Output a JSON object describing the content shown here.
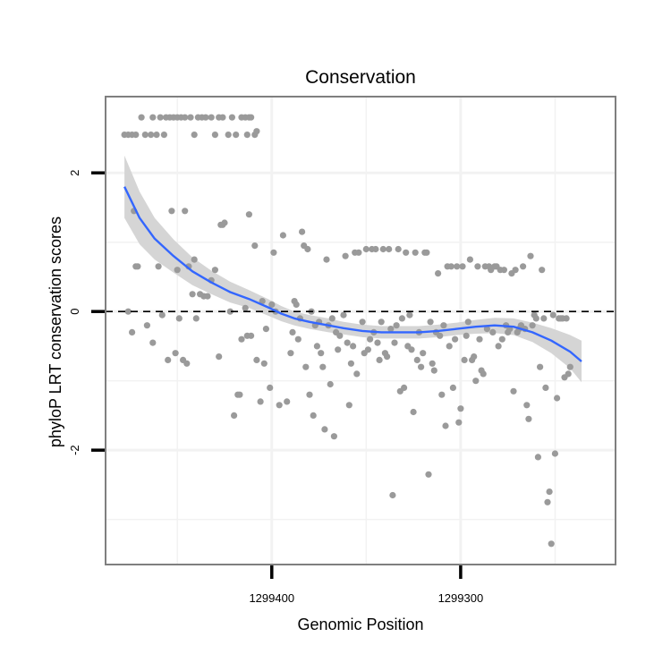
{
  "chart_data": {
    "type": "scatter",
    "title": "Conservation",
    "xlabel": "Genomic Position",
    "ylabel": "phyloP LRT conservation scores",
    "x_ticks": [
      {
        "value": 1299400,
        "label": "1299400"
      },
      {
        "value": 1299300,
        "label": "1299300"
      }
    ],
    "y_ticks": [
      {
        "value": 2,
        "label": "2"
      },
      {
        "value": 0,
        "label": "0"
      },
      {
        "value": -2,
        "label": "-2"
      }
    ],
    "xlim": [
      1299488,
      1299218
    ],
    "x_reversed": true,
    "ylim": [
      -3.65,
      3.1
    ],
    "grid": true,
    "reference_line": {
      "y": 0,
      "style": "dashed"
    },
    "colors": {
      "points": "#9a9a9a",
      "smooth": "#3366ff",
      "band": "#d3d3d3",
      "panel_border": "#7f7f7f",
      "grid": "#f2f2f2"
    },
    "series": [
      {
        "type": "scatter",
        "points": [
          [
            1299478,
            2.55
          ],
          [
            1299476,
            2.55
          ],
          [
            1299474,
            2.55
          ],
          [
            1299472,
            2.55
          ],
          [
            1299469,
            2.8
          ],
          [
            1299467,
            2.55
          ],
          [
            1299464,
            2.55
          ],
          [
            1299463,
            2.8
          ],
          [
            1299461,
            2.55
          ],
          [
            1299459,
            2.8
          ],
          [
            1299457,
            2.55
          ],
          [
            1299456,
            2.8
          ],
          [
            1299454,
            2.8
          ],
          [
            1299452,
            2.8
          ],
          [
            1299450,
            2.8
          ],
          [
            1299448,
            2.8
          ],
          [
            1299446,
            2.8
          ],
          [
            1299443,
            2.8
          ],
          [
            1299441,
            2.55
          ],
          [
            1299439,
            2.8
          ],
          [
            1299437,
            2.8
          ],
          [
            1299435,
            2.8
          ],
          [
            1299432,
            2.8
          ],
          [
            1299430,
            2.55
          ],
          [
            1299428,
            2.8
          ],
          [
            1299426,
            2.8
          ],
          [
            1299423,
            2.55
          ],
          [
            1299421,
            2.8
          ],
          [
            1299419,
            2.55
          ],
          [
            1299416,
            2.8
          ],
          [
            1299414,
            2.8
          ],
          [
            1299413,
            2.55
          ],
          [
            1299412,
            2.8
          ],
          [
            1299411,
            2.8
          ],
          [
            1299409,
            2.55
          ],
          [
            1299408,
            2.6
          ],
          [
            1299476,
            0.0
          ],
          [
            1299474,
            -0.3
          ],
          [
            1299473,
            1.45
          ],
          [
            1299472,
            0.65
          ],
          [
            1299471,
            0.65
          ],
          [
            1299466,
            -0.2
          ],
          [
            1299463,
            -0.45
          ],
          [
            1299460,
            0.65
          ],
          [
            1299458,
            -0.05
          ],
          [
            1299455,
            -0.7
          ],
          [
            1299453,
            1.45
          ],
          [
            1299451,
            -0.6
          ],
          [
            1299450,
            0.6
          ],
          [
            1299449,
            -0.1
          ],
          [
            1299447,
            -0.7
          ],
          [
            1299446,
            1.45
          ],
          [
            1299445,
            -0.75
          ],
          [
            1299444,
            0.65
          ],
          [
            1299442,
            0.25
          ],
          [
            1299441,
            0.75
          ],
          [
            1299440,
            -0.1
          ],
          [
            1299438,
            0.25
          ],
          [
            1299436,
            0.22
          ],
          [
            1299434,
            0.22
          ],
          [
            1299432,
            0.45
          ],
          [
            1299430,
            0.6
          ],
          [
            1299428,
            -0.65
          ],
          [
            1299427,
            1.25
          ],
          [
            1299426,
            1.25
          ],
          [
            1299425,
            1.28
          ],
          [
            1299422,
            0.0
          ],
          [
            1299420,
            -1.5
          ],
          [
            1299418,
            -1.2
          ],
          [
            1299417,
            -1.2
          ],
          [
            1299416,
            -0.4
          ],
          [
            1299414,
            0.05
          ],
          [
            1299413,
            -0.35
          ],
          [
            1299412,
            1.4
          ],
          [
            1299411,
            -0.35
          ],
          [
            1299409,
            0.95
          ],
          [
            1299408,
            -0.7
          ],
          [
            1299406,
            -1.3
          ],
          [
            1299405,
            0.15
          ],
          [
            1299404,
            -0.75
          ],
          [
            1299403,
            -0.25
          ],
          [
            1299401,
            -1.1
          ],
          [
            1299400,
            0.1
          ],
          [
            1299399,
            0.85
          ],
          [
            1299398,
            0.0
          ],
          [
            1299396,
            -1.35
          ],
          [
            1299394,
            1.1
          ],
          [
            1299392,
            -1.3
          ],
          [
            1299390,
            -0.6
          ],
          [
            1299389,
            -0.3
          ],
          [
            1299388,
            0.15
          ],
          [
            1299387,
            0.1
          ],
          [
            1299386,
            -0.4
          ],
          [
            1299385,
            -0.1
          ],
          [
            1299384,
            1.15
          ],
          [
            1299383,
            0.95
          ],
          [
            1299382,
            -0.8
          ],
          [
            1299381,
            0.9
          ],
          [
            1299380,
            -1.2
          ],
          [
            1299379,
            0.0
          ],
          [
            1299378,
            -1.5
          ],
          [
            1299377,
            -0.2
          ],
          [
            1299376,
            -0.5
          ],
          [
            1299375,
            -0.15
          ],
          [
            1299374,
            -0.6
          ],
          [
            1299373,
            -0.8
          ],
          [
            1299372,
            -1.7
          ],
          [
            1299371,
            0.75
          ],
          [
            1299370,
            -0.2
          ],
          [
            1299369,
            -1.05
          ],
          [
            1299368,
            -0.1
          ],
          [
            1299367,
            -1.8
          ],
          [
            1299366,
            -0.3
          ],
          [
            1299365,
            -0.55
          ],
          [
            1299364,
            -0.35
          ],
          [
            1299362,
            -0.05
          ],
          [
            1299361,
            0.8
          ],
          [
            1299360,
            -0.45
          ],
          [
            1299359,
            -1.35
          ],
          [
            1299358,
            -0.75
          ],
          [
            1299357,
            -0.5
          ],
          [
            1299356,
            0.85
          ],
          [
            1299355,
            -0.9
          ],
          [
            1299354,
            0.85
          ],
          [
            1299352,
            -0.15
          ],
          [
            1299351,
            -0.6
          ],
          [
            1299350,
            0.9
          ],
          [
            1299349,
            -0.55
          ],
          [
            1299348,
            -0.4
          ],
          [
            1299347,
            0.9
          ],
          [
            1299346,
            -0.3
          ],
          [
            1299345,
            0.9
          ],
          [
            1299344,
            -0.45
          ],
          [
            1299343,
            -0.7
          ],
          [
            1299342,
            -0.15
          ],
          [
            1299341,
            0.9
          ],
          [
            1299340,
            -0.6
          ],
          [
            1299339,
            -0.65
          ],
          [
            1299338,
            0.9
          ],
          [
            1299337,
            -0.25
          ],
          [
            1299336,
            -2.65
          ],
          [
            1299335,
            -0.45
          ],
          [
            1299334,
            -0.2
          ],
          [
            1299333,
            0.9
          ],
          [
            1299332,
            -1.15
          ],
          [
            1299331,
            -0.1
          ],
          [
            1299330,
            -1.1
          ],
          [
            1299329,
            0.85
          ],
          [
            1299328,
            -0.5
          ],
          [
            1299327,
            -0.05
          ],
          [
            1299326,
            -0.55
          ],
          [
            1299325,
            -1.45
          ],
          [
            1299324,
            0.85
          ],
          [
            1299323,
            -0.7
          ],
          [
            1299322,
            -0.3
          ],
          [
            1299321,
            -0.8
          ],
          [
            1299320,
            -0.6
          ],
          [
            1299319,
            0.85
          ],
          [
            1299318,
            0.85
          ],
          [
            1299317,
            -2.35
          ],
          [
            1299316,
            -0.15
          ],
          [
            1299315,
            -0.75
          ],
          [
            1299314,
            -0.85
          ],
          [
            1299313,
            -0.3
          ],
          [
            1299312,
            0.55
          ],
          [
            1299311,
            -0.35
          ],
          [
            1299310,
            -1.2
          ],
          [
            1299309,
            -0.2
          ],
          [
            1299308,
            -1.65
          ],
          [
            1299307,
            0.65
          ],
          [
            1299306,
            -0.5
          ],
          [
            1299305,
            0.65
          ],
          [
            1299304,
            -1.1
          ],
          [
            1299303,
            -0.4
          ],
          [
            1299302,
            0.65
          ],
          [
            1299301,
            -1.6
          ],
          [
            1299300,
            -1.4
          ],
          [
            1299299,
            0.65
          ],
          [
            1299298,
            -0.7
          ],
          [
            1299297,
            -0.35
          ],
          [
            1299296,
            -0.15
          ],
          [
            1299295,
            0.75
          ],
          [
            1299294,
            -0.7
          ],
          [
            1299293,
            -0.65
          ],
          [
            1299292,
            -1.0
          ],
          [
            1299291,
            0.65
          ],
          [
            1299290,
            -0.4
          ],
          [
            1299289,
            -0.85
          ],
          [
            1299288,
            -0.9
          ],
          [
            1299287,
            0.65
          ],
          [
            1299286,
            -0.25
          ],
          [
            1299285,
            0.65
          ],
          [
            1299284,
            0.6
          ],
          [
            1299283,
            -0.3
          ],
          [
            1299282,
            0.65
          ],
          [
            1299281,
            0.65
          ],
          [
            1299280,
            -0.5
          ],
          [
            1299279,
            0.6
          ],
          [
            1299278,
            -0.4
          ],
          [
            1299277,
            0.6
          ],
          [
            1299276,
            -0.2
          ],
          [
            1299275,
            -0.3
          ],
          [
            1299274,
            -0.25
          ],
          [
            1299273,
            0.55
          ],
          [
            1299272,
            -1.15
          ],
          [
            1299271,
            0.6
          ],
          [
            1299270,
            -0.3
          ],
          [
            1299269,
            -0.25
          ],
          [
            1299268,
            -0.2
          ],
          [
            1299267,
            0.65
          ],
          [
            1299266,
            -0.25
          ],
          [
            1299265,
            -1.35
          ],
          [
            1299264,
            -1.55
          ],
          [
            1299263,
            0.8
          ],
          [
            1299262,
            -0.2
          ],
          [
            1299261,
            -0.05
          ],
          [
            1299260,
            -0.1
          ],
          [
            1299259,
            -2.1
          ],
          [
            1299258,
            -0.8
          ],
          [
            1299257,
            0.6
          ],
          [
            1299256,
            -0.1
          ],
          [
            1299255,
            -1.1
          ],
          [
            1299254,
            -2.75
          ],
          [
            1299253,
            -2.6
          ],
          [
            1299252,
            -3.35
          ],
          [
            1299251,
            -0.05
          ],
          [
            1299250,
            -2.05
          ],
          [
            1299249,
            -1.25
          ],
          [
            1299248,
            -0.1
          ],
          [
            1299247,
            -0.1
          ],
          [
            1299246,
            -0.1
          ],
          [
            1299245,
            -0.95
          ],
          [
            1299244,
            -0.1
          ],
          [
            1299243,
            -0.9
          ],
          [
            1299242,
            -0.8
          ]
        ]
      },
      {
        "type": "smooth",
        "points": [
          [
            1299478,
            1.8
          ],
          [
            1299470,
            1.35
          ],
          [
            1299462,
            1.05
          ],
          [
            1299452,
            0.8
          ],
          [
            1299442,
            0.58
          ],
          [
            1299432,
            0.42
          ],
          [
            1299422,
            0.28
          ],
          [
            1299412,
            0.18
          ],
          [
            1299402,
            0.06
          ],
          [
            1299395,
            -0.03
          ],
          [
            1299388,
            -0.1
          ],
          [
            1299380,
            -0.15
          ],
          [
            1299370,
            -0.2
          ],
          [
            1299362,
            -0.24
          ],
          [
            1299352,
            -0.28
          ],
          [
            1299342,
            -0.3
          ],
          [
            1299332,
            -0.3
          ],
          [
            1299322,
            -0.3
          ],
          [
            1299312,
            -0.28
          ],
          [
            1299302,
            -0.25
          ],
          [
            1299292,
            -0.22
          ],
          [
            1299282,
            -0.2
          ],
          [
            1299272,
            -0.22
          ],
          [
            1299262,
            -0.3
          ],
          [
            1299252,
            -0.42
          ],
          [
            1299242,
            -0.58
          ],
          [
            1299236,
            -0.72
          ]
        ],
        "band_halfwidth": [
          0.45,
          0.38,
          0.3,
          0.24,
          0.2,
          0.17,
          0.15,
          0.13,
          0.12,
          0.11,
          0.1,
          0.1,
          0.1,
          0.09,
          0.09,
          0.09,
          0.09,
          0.09,
          0.09,
          0.09,
          0.1,
          0.11,
          0.12,
          0.14,
          0.18,
          0.24,
          0.3
        ]
      }
    ]
  }
}
